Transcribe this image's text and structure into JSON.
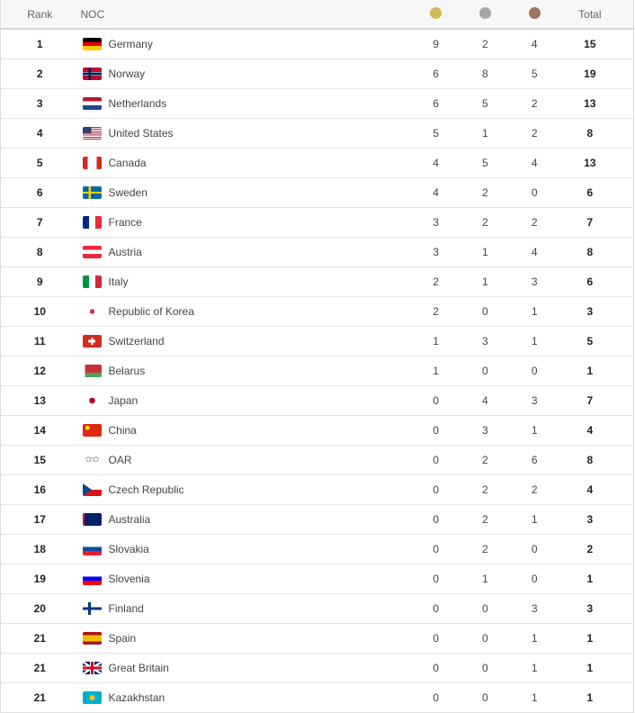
{
  "header": {
    "rank": "Rank",
    "noc": "NOC",
    "total": "Total",
    "gold_icon": "gold-medal-icon",
    "silver_icon": "silver-medal-icon",
    "bronze_icon": "bronze-medal-icon"
  },
  "colors": {
    "gold": "#d4b85a",
    "silver": "#a6a6a6",
    "bronze": "#9c7560"
  },
  "rows": [
    {
      "rank": "1",
      "noc": "Germany",
      "flag": "de",
      "gold": "9",
      "silver": "2",
      "bronze": "4",
      "total": "15"
    },
    {
      "rank": "2",
      "noc": "Norway",
      "flag": "no",
      "gold": "6",
      "silver": "8",
      "bronze": "5",
      "total": "19"
    },
    {
      "rank": "3",
      "noc": "Netherlands",
      "flag": "nl",
      "gold": "6",
      "silver": "5",
      "bronze": "2",
      "total": "13"
    },
    {
      "rank": "4",
      "noc": "United States",
      "flag": "us",
      "gold": "5",
      "silver": "1",
      "bronze": "2",
      "total": "8"
    },
    {
      "rank": "5",
      "noc": "Canada",
      "flag": "ca",
      "gold": "4",
      "silver": "5",
      "bronze": "4",
      "total": "13"
    },
    {
      "rank": "6",
      "noc": "Sweden",
      "flag": "se",
      "gold": "4",
      "silver": "2",
      "bronze": "0",
      "total": "6"
    },
    {
      "rank": "7",
      "noc": "France",
      "flag": "fr",
      "gold": "3",
      "silver": "2",
      "bronze": "2",
      "total": "7"
    },
    {
      "rank": "8",
      "noc": "Austria",
      "flag": "at",
      "gold": "3",
      "silver": "1",
      "bronze": "4",
      "total": "8"
    },
    {
      "rank": "9",
      "noc": "Italy",
      "flag": "it",
      "gold": "2",
      "silver": "1",
      "bronze": "3",
      "total": "6"
    },
    {
      "rank": "10",
      "noc": "Republic of Korea",
      "flag": "kr",
      "gold": "2",
      "silver": "0",
      "bronze": "1",
      "total": "3"
    },
    {
      "rank": "11",
      "noc": "Switzerland",
      "flag": "ch",
      "gold": "1",
      "silver": "3",
      "bronze": "1",
      "total": "5"
    },
    {
      "rank": "12",
      "noc": "Belarus",
      "flag": "by",
      "gold": "1",
      "silver": "0",
      "bronze": "0",
      "total": "1"
    },
    {
      "rank": "13",
      "noc": "Japan",
      "flag": "jp",
      "gold": "0",
      "silver": "4",
      "bronze": "3",
      "total": "7"
    },
    {
      "rank": "14",
      "noc": "China",
      "flag": "cn",
      "gold": "0",
      "silver": "3",
      "bronze": "1",
      "total": "4"
    },
    {
      "rank": "15",
      "noc": "OAR",
      "flag": "oar",
      "gold": "0",
      "silver": "2",
      "bronze": "6",
      "total": "8"
    },
    {
      "rank": "16",
      "noc": "Czech Republic",
      "flag": "cz",
      "gold": "0",
      "silver": "2",
      "bronze": "2",
      "total": "4"
    },
    {
      "rank": "17",
      "noc": "Australia",
      "flag": "au",
      "gold": "0",
      "silver": "2",
      "bronze": "1",
      "total": "3"
    },
    {
      "rank": "18",
      "noc": "Slovakia",
      "flag": "sk",
      "gold": "0",
      "silver": "2",
      "bronze": "0",
      "total": "2"
    },
    {
      "rank": "19",
      "noc": "Slovenia",
      "flag": "si",
      "gold": "0",
      "silver": "1",
      "bronze": "0",
      "total": "1"
    },
    {
      "rank": "20",
      "noc": "Finland",
      "flag": "fi",
      "gold": "0",
      "silver": "0",
      "bronze": "3",
      "total": "3"
    },
    {
      "rank": "21",
      "noc": "Spain",
      "flag": "es",
      "gold": "0",
      "silver": "0",
      "bronze": "1",
      "total": "1"
    },
    {
      "rank": "21",
      "noc": "Great Britain",
      "flag": "gb",
      "gold": "0",
      "silver": "0",
      "bronze": "1",
      "total": "1"
    },
    {
      "rank": "21",
      "noc": "Kazakhstan",
      "flag": "kz",
      "gold": "0",
      "silver": "0",
      "bronze": "1",
      "total": "1"
    }
  ]
}
